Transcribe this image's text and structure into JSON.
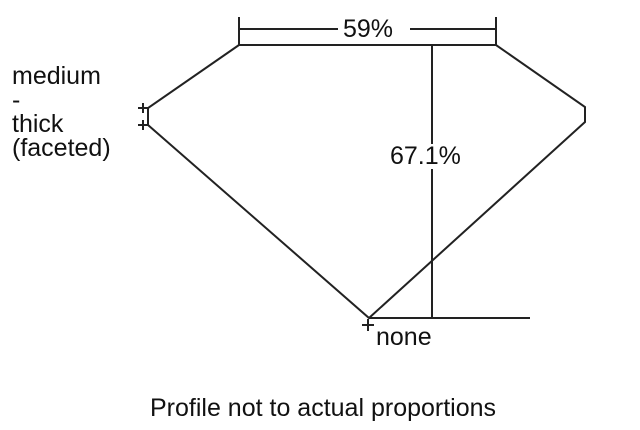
{
  "labels": {
    "table_percent": "59%",
    "depth_percent": "67.1%",
    "girdle_lines": [
      "medium",
      "-",
      "thick",
      "(faceted)"
    ],
    "culet": "none",
    "caption": "Profile not to actual proportions"
  },
  "colors": {
    "line": "#222222",
    "text": "#111111",
    "background": "#ffffff"
  }
}
